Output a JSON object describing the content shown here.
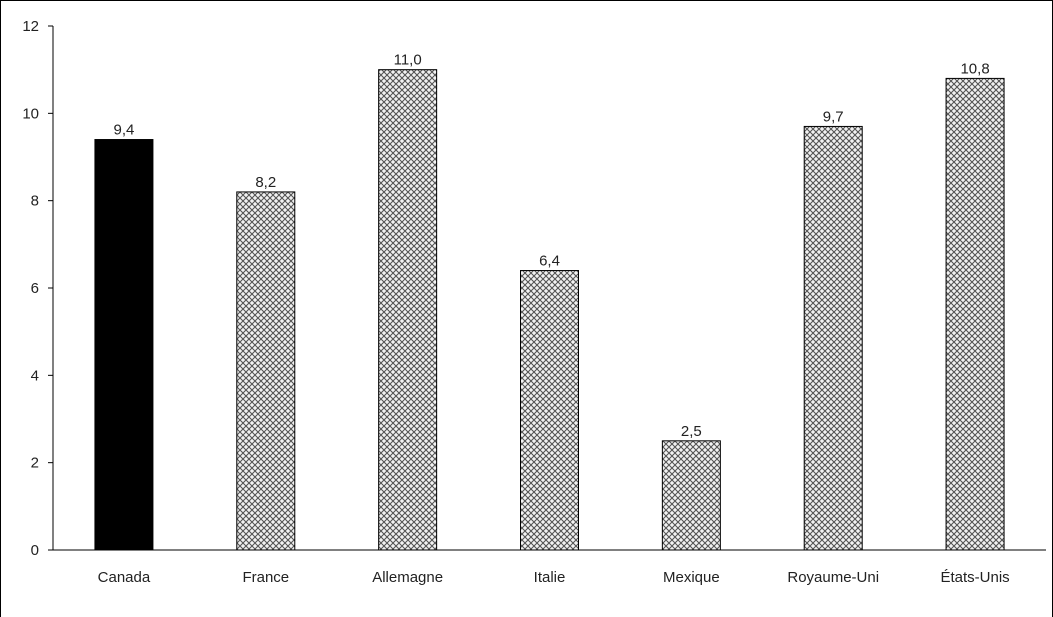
{
  "chart_data": {
    "type": "bar",
    "title": "",
    "xlabel": "",
    "ylabel": "",
    "categories": [
      "Canada",
      "France",
      "Allemagne",
      "Italie",
      "Mexique",
      "Royaume-Uni",
      "États-Unis"
    ],
    "values": [
      9.4,
      8.2,
      11.0,
      6.4,
      2.5,
      9.7,
      10.8
    ],
    "value_labels": [
      "9,4",
      "8,2",
      "11,0",
      "6,4",
      "2,5",
      "9,7",
      "10,8"
    ],
    "yticks": [
      0,
      2,
      4,
      6,
      8,
      10,
      12
    ],
    "ylim": [
      0,
      12
    ],
    "grid": false,
    "legend": "none",
    "highlight_category": "Canada",
    "colors": {
      "highlight_fill": "#000000",
      "bar_pattern_stroke": "#555555",
      "bar_pattern_bg": "#f2f2f2",
      "axis": "#000000"
    }
  }
}
